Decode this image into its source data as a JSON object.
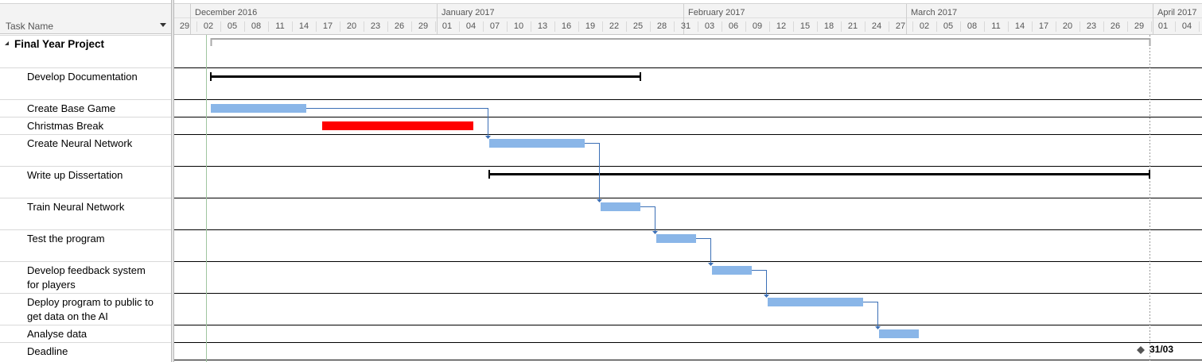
{
  "grid": {
    "column_header": "Task Name"
  },
  "tasks": [
    {
      "name": "Final Year Project",
      "summary": true,
      "start": "2016-12-03",
      "end": "2017-03-31"
    },
    {
      "name": "Develop Documentation",
      "summary": true,
      "start": "2016-12-03",
      "end": "2017-01-26"
    },
    {
      "name": "Create Base Game",
      "summary": false,
      "start": "2016-12-03",
      "end": "2016-12-15"
    },
    {
      "name": "Christmas Break",
      "summary": false,
      "start": "2016-12-17",
      "end": "2017-01-05",
      "critical": true
    },
    {
      "name": "Create Neural Network",
      "summary": false,
      "start": "2017-01-07",
      "end": "2017-01-19"
    },
    {
      "name": "Write up Dissertation",
      "summary": true,
      "start": "2017-01-07",
      "end": "2017-03-31"
    },
    {
      "name": "Train Neural Network",
      "summary": false,
      "start": "2017-01-21",
      "end": "2017-01-26"
    },
    {
      "name": "Test the program",
      "summary": false,
      "start": "2017-01-28",
      "end": "2017-02-02"
    },
    {
      "name": "Develop feedback system for players",
      "lines": [
        "Develop feedback system",
        "for players"
      ],
      "summary": false,
      "start": "2017-02-04",
      "end": "2017-02-09"
    },
    {
      "name": "Deploy program to public to get data on the AI",
      "lines": [
        "Deploy program to public to",
        "get data on the AI"
      ],
      "summary": false,
      "start": "2017-02-11",
      "end": "2017-02-23"
    },
    {
      "name": "Analyse data",
      "summary": false,
      "start": "2017-02-25",
      "end": "2017-03-02"
    },
    {
      "name": "Deadline",
      "summary": false,
      "milestone": true,
      "date": "2017-03-31",
      "label": "31/03"
    }
  ],
  "timescale": {
    "months": [
      "December 2016",
      "January 2017",
      "February 2017",
      "March 2017",
      "April 2017"
    ],
    "days": [
      "29",
      "02",
      "05",
      "08",
      "11",
      "14",
      "17",
      "20",
      "23",
      "26",
      "29",
      "01",
      "04",
      "07",
      "10",
      "13",
      "16",
      "19",
      "22",
      "25",
      "28",
      "31",
      "03",
      "06",
      "09",
      "12",
      "15",
      "18",
      "21",
      "24",
      "27",
      "02",
      "05",
      "08",
      "11",
      "14",
      "17",
      "20",
      "23",
      "26",
      "29",
      "01",
      "04"
    ]
  },
  "colors": {
    "bar": "#8ab6e8",
    "critical_bar": "#ff0000",
    "summary_bar": "#000000",
    "link": "#3b6fb6",
    "today_line": "#9fc59f",
    "deadline_line": "#999999"
  }
}
